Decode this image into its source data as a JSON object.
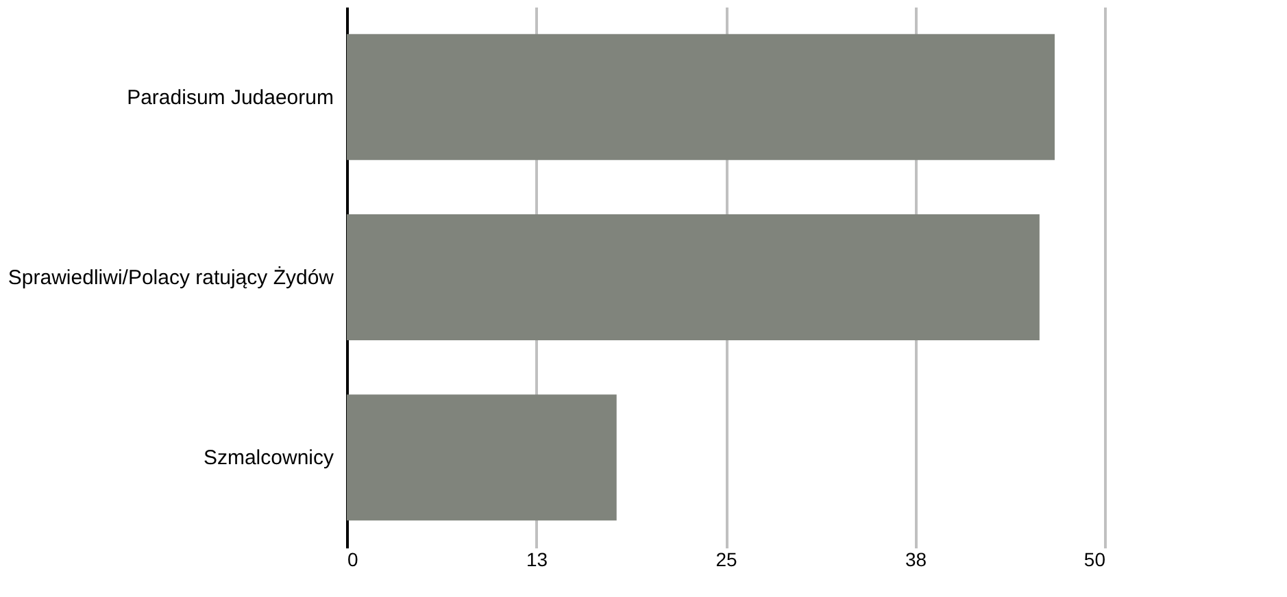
{
  "chart_data": {
    "type": "bar",
    "orientation": "horizontal",
    "categories": [
      "Paradisum Judaeorum",
      "Sprawiedliwi/Polacy ratujący Żydów",
      "Szmalcownicy"
    ],
    "values": [
      46.7,
      45.7,
      17.8
    ],
    "color": "#80847c",
    "xlim": [
      0,
      50
    ],
    "xticks": [
      0,
      {
        "value": 12.5,
        "label": "13"
      },
      25,
      {
        "value": 37.5,
        "label": "38"
      },
      50
    ],
    "grid": "x"
  }
}
